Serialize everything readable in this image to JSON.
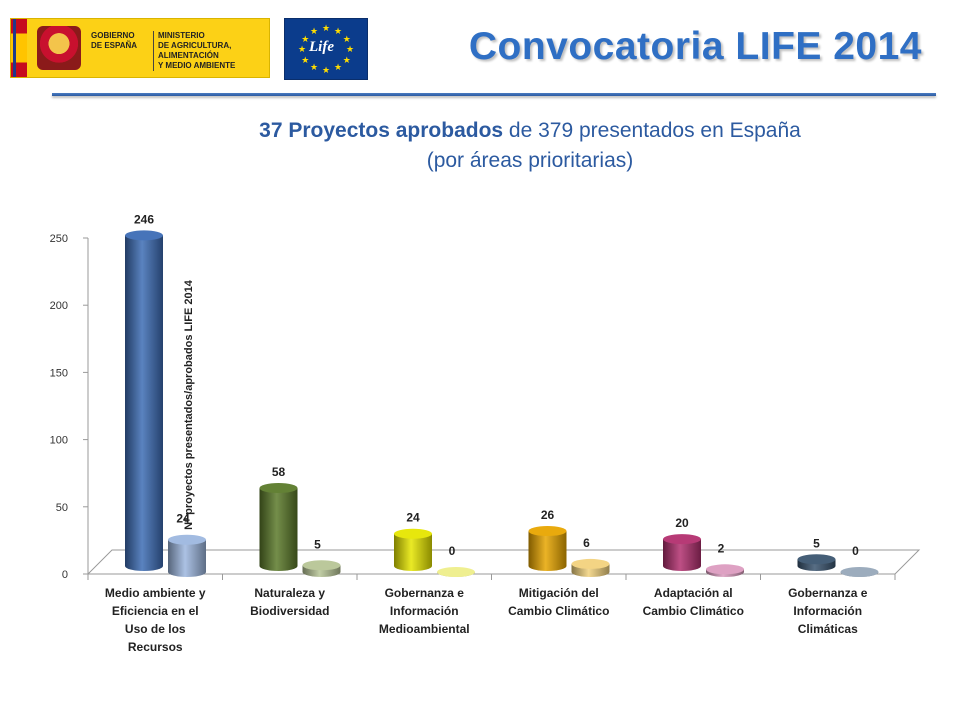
{
  "header": {
    "gov_logo_line1": "GOBIERNO\nDE ESPAÑA",
    "gov_logo_line2": "MINISTERIO\nDE AGRICULTURA, ALIMENTACIÓN\nY MEDIO AMBIENTE",
    "eu_logo_text": "Life",
    "title": "Convocatoria LIFE 2014"
  },
  "subtitle": {
    "bold_part": "37 Proyectos aprobados",
    "rest_line1": " de 379 presentados  en España",
    "line2": "(por áreas prioritarias)"
  },
  "colors": {
    "title": "#2f6fc4",
    "subtitle": "#2c5aa0"
  },
  "chart_data": {
    "type": "bar",
    "ylabel": "Nº proyectos presentados/aprobados LIFE 2014",
    "ylim": [
      0,
      250
    ],
    "yticks": [
      0,
      50,
      100,
      150,
      200,
      250
    ],
    "grid": false,
    "style": "3d-cylinder",
    "categories": [
      "Medio ambiente y Eficiencia en el Uso de los Recursos",
      "Naturaleza y Biodiversidad",
      "Gobernanza e Información Medioambiental",
      "Mitigación del Cambio Climático",
      "Adaptación al Cambio Climático",
      "Gobernanza e Información Climáticas"
    ],
    "categories_display": [
      "Medio ambiente y\nEficiencia en el\nUso de los\nRecursos",
      "Naturaleza y\nBiodiversidad",
      "Gobernanza e\nInformación\nMedioambiental",
      "Mitigación del\nCambio Climático",
      "Adaptación al\nCambio Climático",
      "Gobernanza e\nInformación\nClimáticas"
    ],
    "series": [
      {
        "values": [
          246,
          58,
          24,
          26,
          20,
          5
        ],
        "colors": [
          "#3d6db5",
          "#5b7a2a",
          "#e6e600",
          "#e8a600",
          "#b3306f",
          "#3b5570"
        ]
      },
      {
        "values": [
          24,
          5,
          0,
          6,
          2,
          0
        ],
        "colors": [
          "#9db7df",
          "#b7c596",
          "#eeee8a",
          "#f2d27e",
          "#dc9cc0",
          "#97a8b9"
        ]
      }
    ]
  }
}
